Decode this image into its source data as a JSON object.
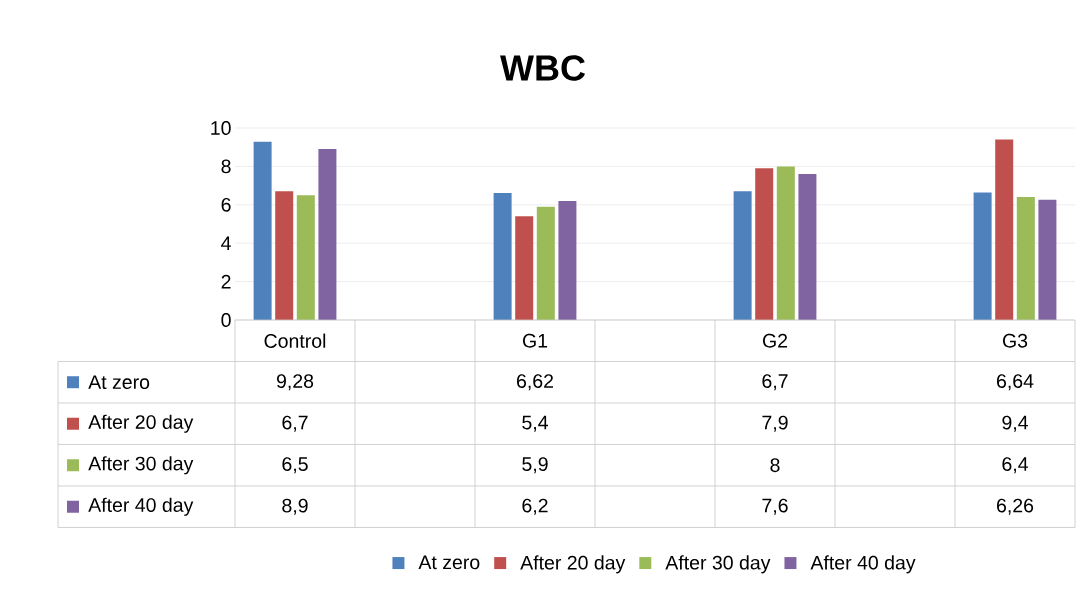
{
  "chart_data": {
    "type": "bar",
    "title": "WBC",
    "categories": [
      "Control",
      null,
      "G1",
      null,
      "G2",
      null,
      "G3"
    ],
    "series": [
      {
        "name": "At zero",
        "color": "#4f81bd",
        "values": [
          9.28,
          null,
          6.62,
          null,
          6.7,
          null,
          6.64
        ],
        "value_labels": [
          "9,28",
          null,
          "6,62",
          null,
          "6,7",
          null,
          "6,64"
        ]
      },
      {
        "name": "After 20 day",
        "color": "#c0504d",
        "values": [
          6.7,
          null,
          5.4,
          null,
          7.9,
          null,
          9.4
        ],
        "value_labels": [
          "6,7",
          null,
          "5,4",
          null,
          "7,9",
          null,
          "9,4"
        ]
      },
      {
        "name": "After 30 day",
        "color": "#9bbb59",
        "values": [
          6.5,
          null,
          5.9,
          null,
          8,
          null,
          6.4
        ],
        "value_labels": [
          "6,5",
          null,
          "5,9",
          null,
          "8",
          null,
          "6,4"
        ]
      },
      {
        "name": "After 40 day",
        "color": "#8064a2",
        "values": [
          8.9,
          null,
          6.2,
          null,
          7.6,
          null,
          6.26
        ],
        "value_labels": [
          "8,9",
          null,
          "6,2",
          null,
          "7,6",
          null,
          "6,26"
        ]
      }
    ],
    "ylim": [
      0,
      10
    ],
    "yticks": [
      0,
      2,
      4,
      6,
      8,
      10
    ],
    "grid": "y",
    "legend": "bottom"
  }
}
